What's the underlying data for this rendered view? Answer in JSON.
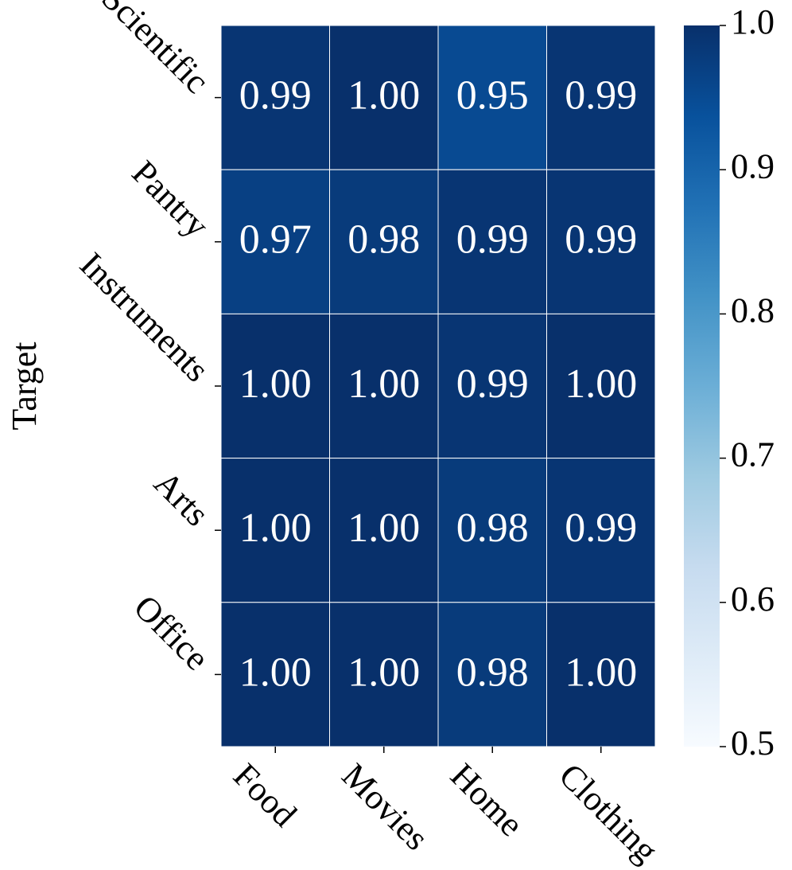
{
  "chart_data": {
    "type": "heatmap",
    "ylabel": "Target",
    "rows": [
      "Scientific",
      "Pantry",
      "Instruments",
      "Arts",
      "Office"
    ],
    "columns": [
      "Food",
      "Movies",
      "Home",
      "Clothing"
    ],
    "values": [
      [
        0.99,
        1.0,
        0.95,
        0.99
      ],
      [
        0.97,
        0.98,
        0.99,
        0.99
      ],
      [
        1.0,
        1.0,
        0.99,
        1.0
      ],
      [
        1.0,
        1.0,
        0.98,
        0.99
      ],
      [
        1.0,
        1.0,
        0.98,
        1.0
      ]
    ],
    "value_labels": [
      [
        "0.99",
        "1.00",
        "0.95",
        "0.99"
      ],
      [
        "0.97",
        "0.98",
        "0.99",
        "0.99"
      ],
      [
        "1.00",
        "1.00",
        "0.99",
        "1.00"
      ],
      [
        "1.00",
        "1.00",
        "0.98",
        "0.99"
      ],
      [
        "1.00",
        "1.00",
        "0.98",
        "1.00"
      ]
    ],
    "colormap": "Blues",
    "clim": [
      0.5,
      1.0
    ],
    "cticks": [
      0.5,
      0.6,
      0.7,
      0.8,
      0.9,
      {
        "value": 1.0,
        "label": "1.0"
      }
    ]
  }
}
